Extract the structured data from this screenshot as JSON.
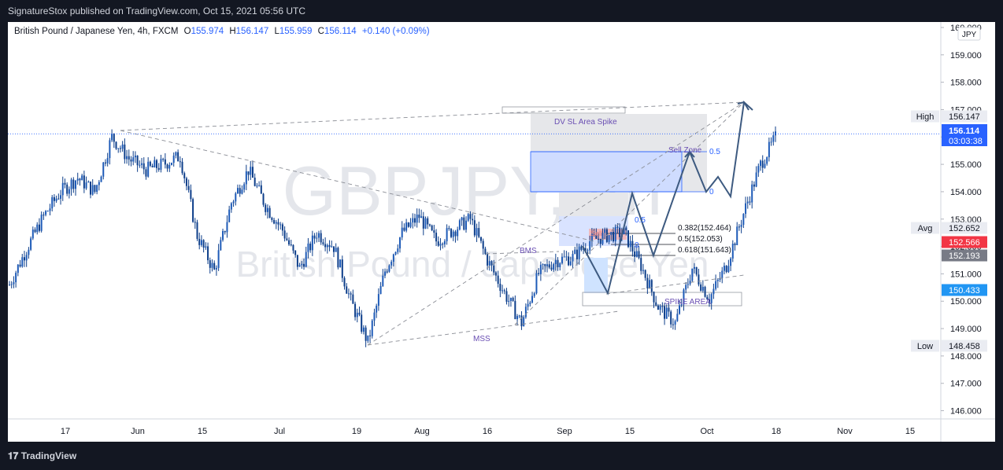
{
  "header": {
    "publisher_line": "SignatureStox published on TradingView.com, Oct 15, 2021 05:56 UTC"
  },
  "legend": {
    "instrument": "British Pound / Japanese Yen, 4h, FXCM",
    "o_label": "O",
    "o_value": "155.974",
    "h_label": "H",
    "h_value": "156.147",
    "l_label": "L",
    "l_value": "155.959",
    "c_label": "C",
    "c_value": "156.114",
    "change": "+0.140 (+0.09%)"
  },
  "watermark": {
    "line1": "GBPJPY, 4h",
    "line2": "British Pound / Japanese Yen"
  },
  "currency_tag": "JPY",
  "price_badges": {
    "high_label": "High",
    "high_value": "156.147",
    "last_value": "156.114",
    "countdown": "03:03:38",
    "avg_label": "Avg",
    "avg_value": "152.652",
    "red_value": "152.566",
    "grey_value": "152.193",
    "blue_value": "150.433",
    "low_label": "Low",
    "low_value": "148.458"
  },
  "annotations": {
    "dv_sl": "DV SL Area Spike",
    "sell_zone": "Sell Zone",
    "bms": "BMS",
    "mss": "MSS",
    "spike_area": "SPIKE AREA",
    "fib_upper_05": "0.5",
    "fib_upper_0": "0",
    "fib_lower_05": "0.5",
    "fib_lower_0": "0",
    "fib_0382": "0.382(152.464)",
    "fib_05": "0.5(152.053)",
    "fib_0618": "0.618(151.643)",
    "sell_label": "Sell"
  },
  "footer": {
    "brand": "TradingView"
  },
  "chart_data": {
    "type": "candlestick",
    "y_ticks": [
      "160.000",
      "159.000",
      "158.000",
      "157.000",
      "156.000",
      "155.000",
      "154.000",
      "153.000",
      "152.000",
      "151.000",
      "150.000",
      "149.000",
      "148.000",
      "147.000",
      "146.000"
    ],
    "x_ticks": [
      "17",
      "Jun",
      "15",
      "Jul",
      "19",
      "Aug",
      "16",
      "Sep",
      "15",
      "Oct",
      "18",
      "Nov",
      "15"
    ],
    "ylim": [
      145.7,
      160.2
    ],
    "price_path": [
      {
        "date": "May 10",
        "price": 150.6
      },
      {
        "date": "May 13",
        "price": 151.9
      },
      {
        "date": "May 17",
        "price": 153.1
      },
      {
        "date": "May 20",
        "price": 154.0
      },
      {
        "date": "May 24",
        "price": 154.5
      },
      {
        "date": "May 27",
        "price": 154.0
      },
      {
        "date": "May 31",
        "price": 156.0
      },
      {
        "date": "Jun 3",
        "price": 155.2
      },
      {
        "date": "Jun 7",
        "price": 154.8
      },
      {
        "date": "Jun 10",
        "price": 155.0
      },
      {
        "date": "Jun 14",
        "price": 155.3
      },
      {
        "date": "Jun 17",
        "price": 152.4
      },
      {
        "date": "Jun 21",
        "price": 151.1
      },
      {
        "date": "Jun 24",
        "price": 153.6
      },
      {
        "date": "Jun 28",
        "price": 154.8
      },
      {
        "date": "Jul 1",
        "price": 153.5
      },
      {
        "date": "Jul 5",
        "price": 152.6
      },
      {
        "date": "Jul 8",
        "price": 151.2
      },
      {
        "date": "Jul 12",
        "price": 152.5
      },
      {
        "date": "Jul 15",
        "price": 152.0
      },
      {
        "date": "Jul 19",
        "price": 150.0
      },
      {
        "date": "Jul 21",
        "price": 148.5
      },
      {
        "date": "Jul 24",
        "price": 151.1
      },
      {
        "date": "Jul 28",
        "price": 152.5
      },
      {
        "date": "Aug 2",
        "price": 153.1
      },
      {
        "date": "Aug 5",
        "price": 152.2
      },
      {
        "date": "Aug 9",
        "price": 152.6
      },
      {
        "date": "Aug 12",
        "price": 153.0
      },
      {
        "date": "Aug 16",
        "price": 151.5
      },
      {
        "date": "Aug 19",
        "price": 150.3
      },
      {
        "date": "Aug 23",
        "price": 149.2
      },
      {
        "date": "Aug 26",
        "price": 151.0
      },
      {
        "date": "Aug 30",
        "price": 151.5
      },
      {
        "date": "Sep 2",
        "price": 151.6
      },
      {
        "date": "Sep 6",
        "price": 152.2
      },
      {
        "date": "Sep 9",
        "price": 152.4
      },
      {
        "date": "Sep 13",
        "price": 152.5
      },
      {
        "date": "Sep 16",
        "price": 151.3
      },
      {
        "date": "Sep 20",
        "price": 149.8
      },
      {
        "date": "Sep 23",
        "price": 149.2
      },
      {
        "date": "Sep 27",
        "price": 151.2
      },
      {
        "date": "Sep 30",
        "price": 150.1
      },
      {
        "date": "Oct 4",
        "price": 151.3
      },
      {
        "date": "Oct 7",
        "price": 153.2
      },
      {
        "date": "Oct 11",
        "price": 155.0
      },
      {
        "date": "Oct 14",
        "price": 156.1
      }
    ],
    "annotated_levels": {
      "high": 156.147,
      "last": 156.114,
      "avg": 152.652,
      "low": 148.458,
      "red": 152.566,
      "grey": 152.193,
      "blue": 150.433
    }
  }
}
